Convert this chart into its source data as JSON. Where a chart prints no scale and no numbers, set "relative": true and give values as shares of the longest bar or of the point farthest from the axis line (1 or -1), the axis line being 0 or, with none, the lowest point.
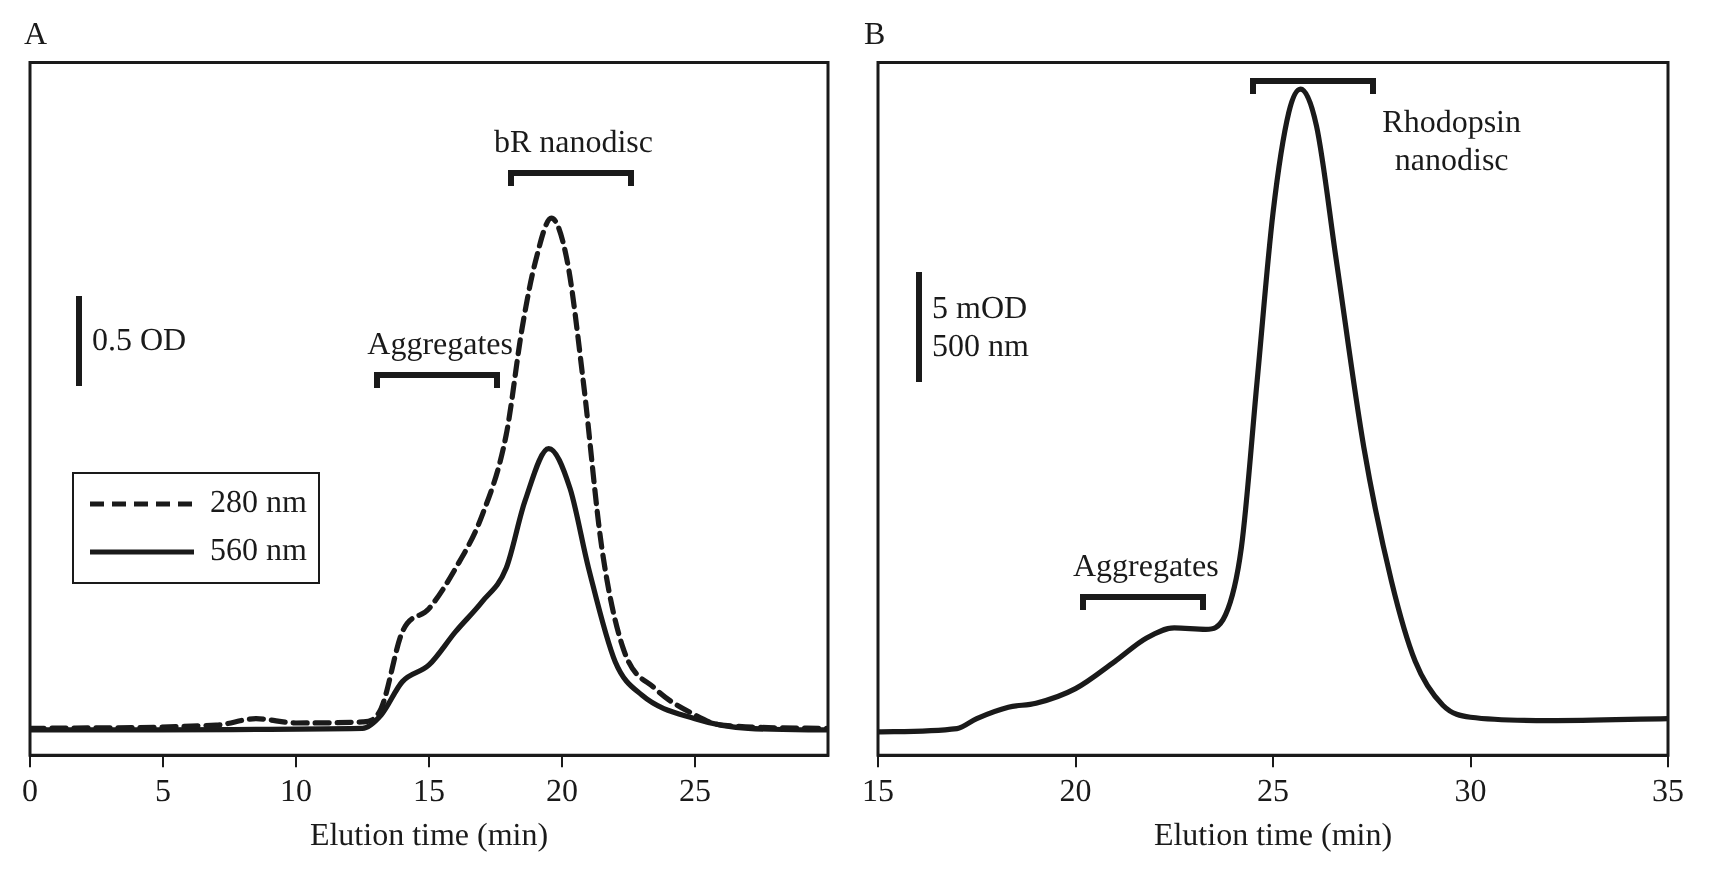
{
  "chart_data": [
    {
      "type": "line",
      "title": "A",
      "xlabel": "Elution time (min)",
      "relative": true,
      "xlim": [
        0,
        30
      ],
      "xticks": [
        0,
        5,
        10,
        15,
        20,
        25
      ],
      "legend": "left",
      "grid": false,
      "marker": "none",
      "annotations": [
        "0.5 OD",
        "Aggregates",
        "bR nanodisc"
      ],
      "series": [
        {
          "name": "280 nm",
          "color": "#1a1a1a",
          "line_style": "dashed",
          "x": [
            0,
            7,
            8.5,
            10,
            12.5,
            13.2,
            14,
            15,
            16,
            17,
            17.9,
            18.5,
            19,
            19.6,
            20.2,
            20.8,
            21.5,
            22.3,
            23.5,
            25,
            26,
            30
          ],
          "values": [
            0.05,
            0.056,
            0.068,
            0.06,
            0.062,
            0.087,
            0.23,
            0.273,
            0.348,
            0.447,
            0.596,
            0.795,
            0.919,
            1,
            0.919,
            0.696,
            0.385,
            0.199,
            0.124,
            0.075,
            0.056,
            0.05
          ]
        },
        {
          "name": "560 nm",
          "color": "#1a1a1a",
          "line_style": "solid",
          "x": [
            0,
            12.5,
            13.2,
            14,
            15,
            16,
            17,
            17.9,
            18.6,
            19.5,
            20.3,
            21,
            22,
            23,
            25,
            27,
            30
          ],
          "values": [
            0.047,
            0.05,
            0.075,
            0.137,
            0.168,
            0.23,
            0.286,
            0.348,
            0.472,
            0.571,
            0.497,
            0.348,
            0.174,
            0.112,
            0.068,
            0.05,
            0.047
          ]
        }
      ]
    },
    {
      "type": "line",
      "title": "B",
      "xlabel": "Elution time (min)",
      "relative": true,
      "xlim": [
        15,
        35
      ],
      "xticks": [
        15,
        20,
        25,
        30,
        35
      ],
      "legend": false,
      "grid": false,
      "marker": "none",
      "annotations": [
        "5 mOD",
        "500 nm",
        "Aggregates",
        "Rhodopsin nanodisc"
      ],
      "series": [
        {
          "color": "#1a1a1a",
          "line_style": "solid",
          "x": [
            15,
            17,
            17.5,
            18.3,
            19,
            20,
            21,
            21.8,
            22.5,
            23.3,
            23.8,
            24.2,
            24.6,
            25,
            25.4,
            25.7,
            26.1,
            26.6,
            27.3,
            28,
            28.6,
            29.3,
            30,
            32,
            35
          ],
          "values": [
            0.035,
            0.04,
            0.055,
            0.072,
            0.078,
            0.1,
            0.141,
            0.176,
            0.191,
            0.189,
            0.211,
            0.312,
            0.563,
            0.814,
            0.965,
            1,
            0.945,
            0.744,
            0.462,
            0.261,
            0.141,
            0.075,
            0.057,
            0.052,
            0.055
          ]
        }
      ]
    }
  ]
}
